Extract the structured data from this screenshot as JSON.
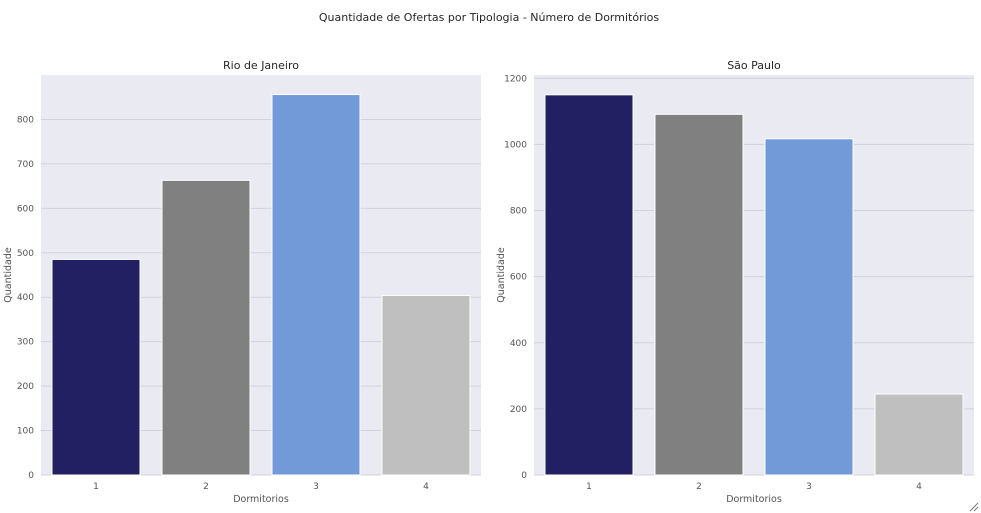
{
  "figure": {
    "title": "Quantidade de Ofertas por Tipologia - Número de Dormitórios"
  },
  "chart_data": [
    {
      "type": "bar",
      "title": "Rio de Janeiro",
      "xlabel": "Dormitorios",
      "ylabel": "Quantidade",
      "categories": [
        "1",
        "2",
        "3",
        "4"
      ],
      "values": [
        485,
        663,
        856,
        404
      ],
      "colors": [
        "#221f62",
        "#808080",
        "#729ad9",
        "#bfbfbf"
      ],
      "ylim": [
        0,
        900
      ],
      "yticks": [
        0,
        100,
        200,
        300,
        400,
        500,
        600,
        700,
        800
      ],
      "grid": true
    },
    {
      "type": "bar",
      "title": "São Paulo",
      "xlabel": "Dormitorios",
      "ylabel": "Quantidade",
      "categories": [
        "1",
        "2",
        "3",
        "4"
      ],
      "values": [
        1150,
        1091,
        1017,
        245
      ],
      "colors": [
        "#221f62",
        "#808080",
        "#729ad9",
        "#bfbfbf"
      ],
      "ylim": [
        0,
        1210
      ],
      "yticks": [
        0,
        200,
        400,
        600,
        800,
        1000,
        1200
      ],
      "grid": true
    }
  ]
}
